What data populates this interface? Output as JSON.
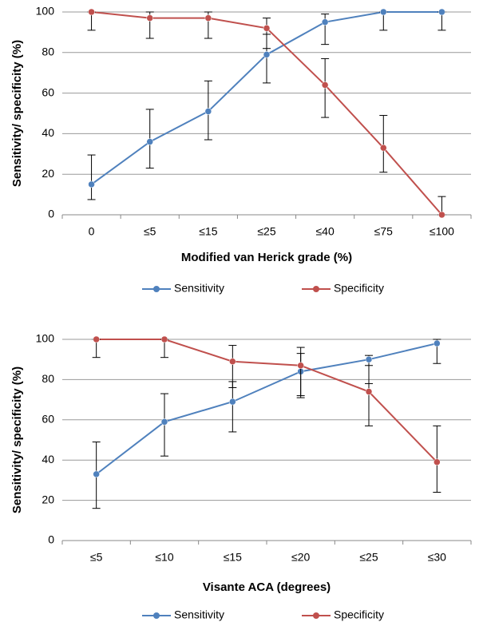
{
  "chart_data": [
    {
      "type": "line",
      "xlabel": "Modified van Herick grade (%)",
      "ylabel": "Sensitivity/ specificity (%)",
      "categories": [
        "0",
        "≤5",
        "≤15",
        "≤25",
        "≤40",
        "≤75",
        "≤100"
      ],
      "ylim": [
        0,
        100
      ],
      "yticks": [
        0,
        20,
        40,
        60,
        80,
        100
      ],
      "grid": true,
      "legend": "bottom",
      "series": [
        {
          "name": "Sensitivity",
          "color": "#4f81bd",
          "values": [
            15,
            36,
            51,
            79,
            95,
            100,
            100
          ],
          "lower": [
            7.5,
            23,
            37,
            65,
            84,
            91,
            91
          ],
          "upper": [
            29.5,
            52,
            66,
            89,
            99,
            100,
            100
          ]
        },
        {
          "name": "Specificity",
          "color": "#c0504d",
          "values": [
            100,
            97,
            97,
            92,
            64,
            33,
            0
          ],
          "lower": [
            91,
            87,
            87,
            82,
            48,
            21,
            0
          ],
          "upper": [
            100,
            100,
            100,
            97,
            77,
            49,
            9
          ]
        }
      ]
    },
    {
      "type": "line",
      "xlabel": "Visante ACA (degrees)",
      "ylabel": "Sensitivity/ specificity (%)",
      "categories": [
        "≤5",
        "≤10",
        "≤15",
        "≤20",
        "≤25",
        "≤30"
      ],
      "ylim": [
        0,
        100
      ],
      "yticks": [
        0,
        20,
        40,
        60,
        80,
        100
      ],
      "grid": true,
      "legend": "bottom",
      "series": [
        {
          "name": "Sensitivity",
          "color": "#4f81bd",
          "values": [
            33,
            59,
            69,
            84,
            90,
            98
          ],
          "lower": [
            16,
            42,
            54,
            71,
            78,
            88
          ],
          "upper": [
            49,
            73,
            79,
            93,
            92,
            100
          ]
        },
        {
          "name": "Specificity",
          "color": "#c0504d",
          "values": [
            100,
            100,
            89,
            87,
            74,
            39
          ],
          "lower": [
            91,
            91,
            76,
            72,
            57,
            24
          ],
          "upper": [
            100,
            100,
            97,
            96,
            87,
            57
          ]
        }
      ]
    }
  ]
}
